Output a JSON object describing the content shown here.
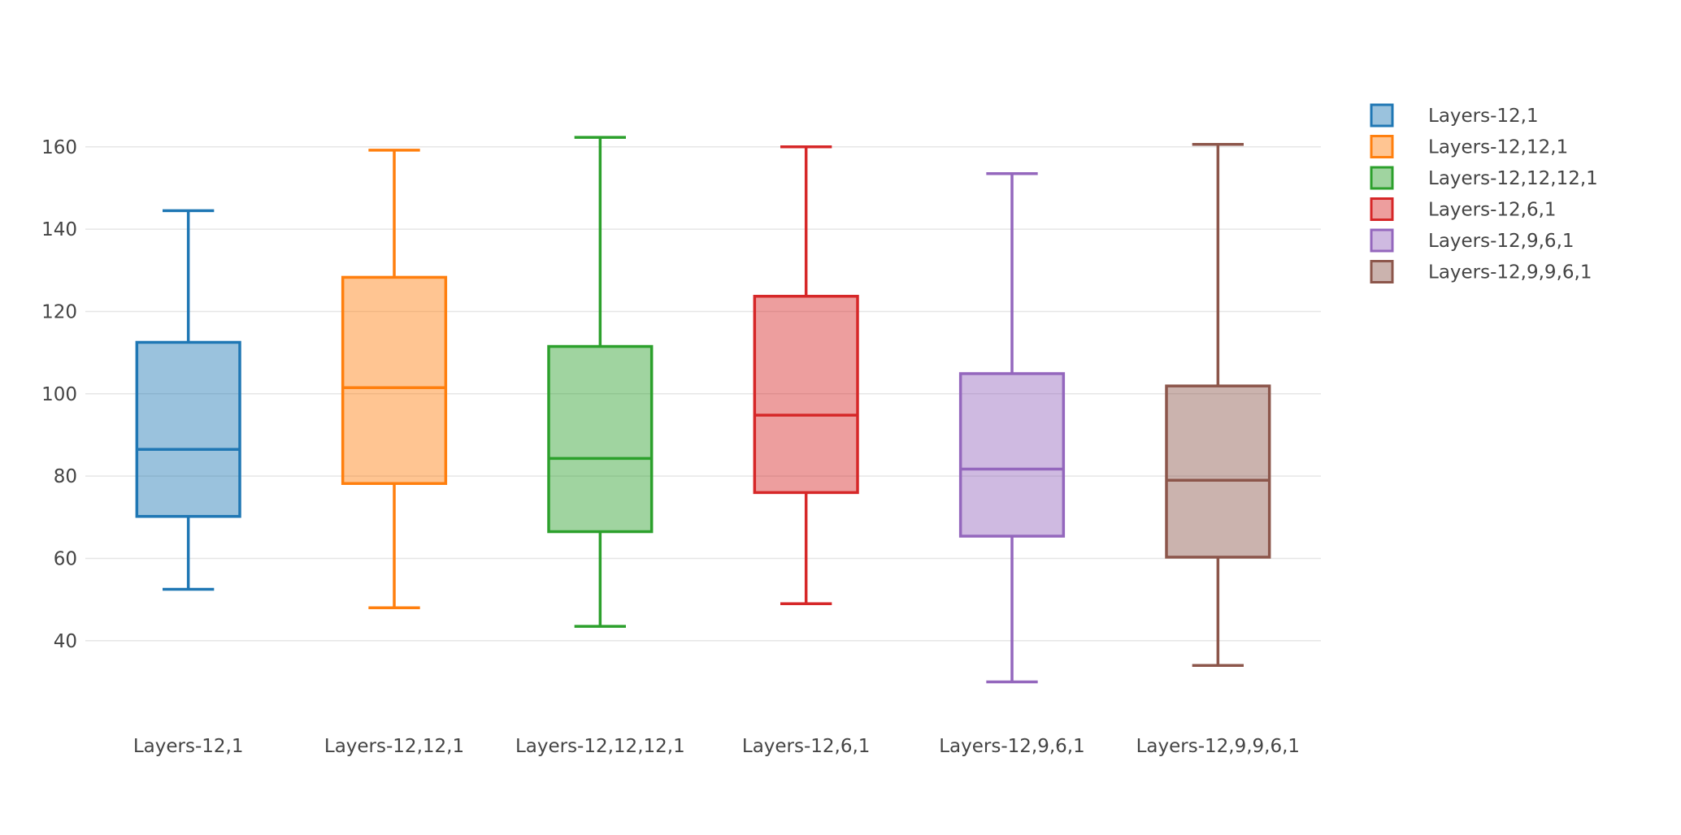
{
  "chart_data": {
    "type": "box",
    "title": "",
    "xlabel": "",
    "ylabel": "",
    "ylim": [
      22,
      172
    ],
    "yticks": [
      40,
      60,
      80,
      100,
      120,
      140,
      160
    ],
    "grid": true,
    "legend_position": "right",
    "categories": [
      "Layers-12,1",
      "Layers-12,12,1",
      "Layers-12,12,12,1",
      "Layers-12,6,1",
      "Layers-12,9,6,1",
      "Layers-12,9,9,6,1"
    ],
    "series": [
      {
        "name": "Layers-12,1",
        "color": "#1f77b4",
        "min": 52.5,
        "q1": 70.2,
        "median": 86.5,
        "q3": 112.5,
        "max": 144.5
      },
      {
        "name": "Layers-12,12,1",
        "color": "#ff7f0e",
        "min": 48,
        "q1": 78.2,
        "median": 101.5,
        "q3": 128.3,
        "max": 159.2
      },
      {
        "name": "Layers-12,12,12,1",
        "color": "#2ca02c",
        "min": 43.5,
        "q1": 66.5,
        "median": 84.3,
        "q3": 111.5,
        "max": 162.3
      },
      {
        "name": "Layers-12,6,1",
        "color": "#d62728",
        "min": 49,
        "q1": 76,
        "median": 94.8,
        "q3": 123.7,
        "max": 160
      },
      {
        "name": "Layers-12,9,6,1",
        "color": "#9467bd",
        "min": 30,
        "q1": 65.4,
        "median": 81.7,
        "q3": 104.9,
        "max": 153.5
      },
      {
        "name": "Layers-12,9,9,6,1",
        "color": "#8c564b",
        "min": 34,
        "q1": 60.3,
        "median": 79,
        "q3": 101.9,
        "max": 160.6
      }
    ]
  }
}
